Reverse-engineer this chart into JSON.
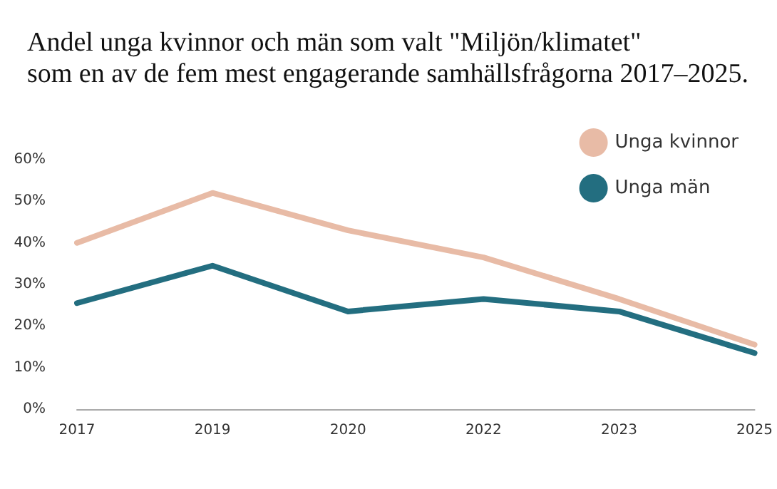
{
  "chart_data": {
    "type": "line",
    "title": "Andel unga kvinnor och män som valt \"Miljön/klimatet\"\nsom en av de fem mest engagerande samhällsfrågorna 2017–2025.",
    "categories": [
      "2017",
      "2019",
      "2020",
      "2022",
      "2023",
      "2025"
    ],
    "series": [
      {
        "name": "Unga kvinnor",
        "color": "#e8bba6",
        "values": [
          40,
          52,
          43,
          36.5,
          26.5,
          15.5
        ]
      },
      {
        "name": "Unga män",
        "color": "#236e80",
        "values": [
          25.5,
          34.5,
          23.5,
          26.5,
          23.5,
          13.5
        ]
      }
    ],
    "ylim": [
      0,
      60
    ],
    "yticks": [
      {
        "value": 0,
        "label": "0%"
      },
      {
        "value": 10,
        "label": "10%"
      },
      {
        "value": 20,
        "label": "20%"
      },
      {
        "value": 30,
        "label": "30%"
      },
      {
        "value": 40,
        "label": "40%"
      },
      {
        "value": 50,
        "label": "50%"
      },
      {
        "value": 60,
        "label": "60%"
      }
    ],
    "grid": false,
    "legend": "top right",
    "marker": "none",
    "line_style": "solid"
  }
}
